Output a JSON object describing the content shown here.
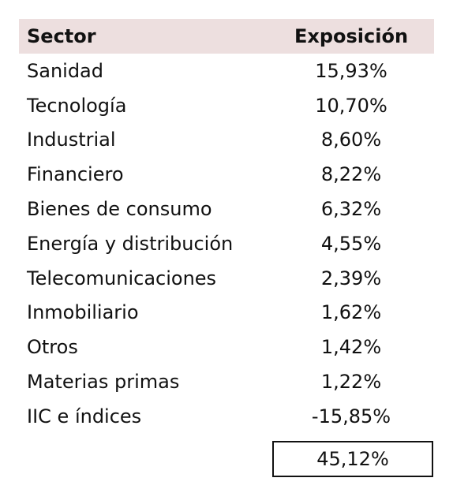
{
  "header": {
    "sector": "Sector",
    "exposure": "Exposición"
  },
  "rows": [
    {
      "sector": "Sanidad",
      "exposure": "15,93%"
    },
    {
      "sector": "Tecnología",
      "exposure": "10,70%"
    },
    {
      "sector": "Industrial",
      "exposure": "8,60%"
    },
    {
      "sector": "Financiero",
      "exposure": "8,22%"
    },
    {
      "sector": "Bienes de consumo",
      "exposure": "6,32%"
    },
    {
      "sector": "Energía y distribución",
      "exposure": "4,55%"
    },
    {
      "sector": "Telecomunicaciones",
      "exposure": "2,39%"
    },
    {
      "sector": "Inmobiliario",
      "exposure": "1,62%"
    },
    {
      "sector": "Otros",
      "exposure": "1,42%"
    },
    {
      "sector": "Materias primas",
      "exposure": "1,22%"
    },
    {
      "sector": "IIC e índices",
      "exposure": "-15,85%"
    }
  ],
  "total": "45,12%",
  "colors": {
    "header_bg": "#eddfdf",
    "text": "#111111"
  }
}
